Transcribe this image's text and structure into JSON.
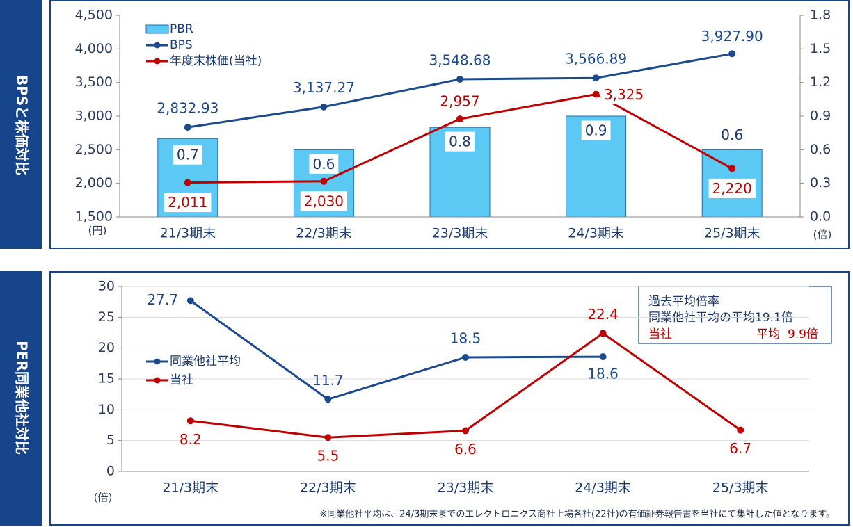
{
  "chart_data": [
    {
      "type": "bar_line",
      "title": "BPSと株価対比",
      "categories": [
        "21/3期末",
        "22/3期末",
        "23/3期末",
        "24/3期末",
        "25/3期末"
      ],
      "series": [
        {
          "name": "PBR",
          "type": "bar",
          "axis": "y2",
          "color": "#5cc8f4",
          "values": [
            0.7,
            0.6,
            0.8,
            0.9,
            0.6
          ]
        },
        {
          "name": "BPS",
          "type": "line",
          "color": "#1b4a8d",
          "values": [
            2832.93,
            3137.27,
            3548.68,
            3566.89,
            3927.9
          ],
          "value_labels": [
            "2,832.93",
            "3,137.27",
            "3,548.68",
            "3,566.89",
            "3,927.90"
          ]
        },
        {
          "name": "年度末株価(当社)",
          "type": "line",
          "color": "#c00000",
          "values": [
            2011,
            2030,
            2957,
            3325,
            2220
          ],
          "value_labels": [
            "2,011",
            "2,030",
            "2,957",
            "3,325",
            "2,220"
          ]
        }
      ],
      "ylim": [
        1500,
        4500
      ],
      "yticks": [
        {
          "value": 1500,
          "label": "1,500"
        },
        {
          "value": 2000,
          "label": "2,000"
        },
        {
          "value": 2500,
          "label": "2,500"
        },
        {
          "value": 3000,
          "label": "3,000"
        },
        {
          "value": 3500,
          "label": "3,500"
        },
        {
          "value": 4000,
          "label": "4,000"
        },
        {
          "value": 4500,
          "label": "4,500"
        }
      ],
      "y2lim": [
        0,
        1.8
      ],
      "y2ticks": [
        {
          "value": 0,
          "label": "0.0"
        },
        0.3,
        0.6,
        0.9,
        1.2,
        1.5,
        1.8
      ],
      "y_unit": "(円)",
      "y2_unit": "(倍)",
      "grid": false
    },
    {
      "type": "line",
      "title": "PER同業他社対比",
      "categories": [
        "21/3期末",
        "22/3期末",
        "23/3期末",
        "24/3期末",
        "25/3期末"
      ],
      "series": [
        {
          "name": "同業他社平均",
          "color": "#1b4a8d",
          "values": [
            27.7,
            11.7,
            18.5,
            18.6,
            null
          ]
        },
        {
          "name": "当社",
          "color": "#c00000",
          "values": [
            8.2,
            5.5,
            6.6,
            22.4,
            6.7
          ]
        }
      ],
      "ylim": [
        0,
        30
      ],
      "yticks": [
        0,
        5,
        10,
        15,
        20,
        25,
        30
      ],
      "y_unit": "(倍)",
      "grid": true,
      "annotation": {
        "heading": "過去平均倍率",
        "peer": "同業他社平均の平均19.1倍",
        "own": "当社",
        "own_value": "平均  9.9倍"
      },
      "footnote": "※同業他社平均は、24/3期末までのエレクトロニクス商社上場各社(22社)の有価証券報告書を当社にて集計した値となります。"
    }
  ]
}
